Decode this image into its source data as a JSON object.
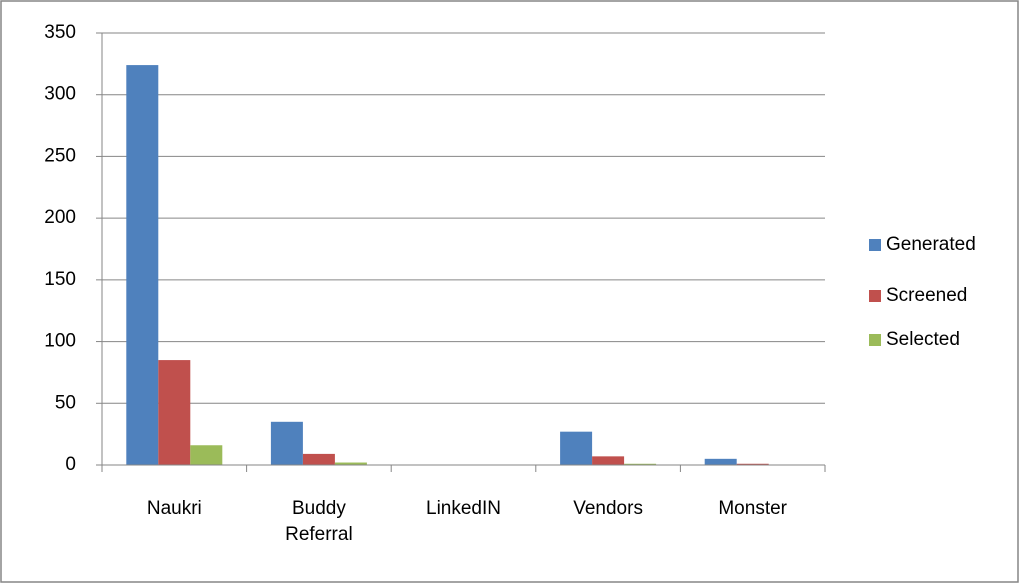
{
  "chart_data": {
    "type": "bar",
    "categories": [
      "Naukri",
      "Buddy Referral",
      "LinkedIN",
      "Vendors",
      "Monster"
    ],
    "series": [
      {
        "name": "Generated",
        "color": "#4f81bd",
        "values": [
          324,
          35,
          0,
          27,
          5
        ]
      },
      {
        "name": "Screened",
        "color": "#c0504d",
        "values": [
          85,
          9,
          0,
          7,
          1
        ]
      },
      {
        "name": "Selected",
        "color": "#9bbb59",
        "values": [
          16,
          2,
          0,
          1,
          0
        ]
      }
    ],
    "ylim": [
      0,
      350
    ],
    "yticks": [
      0,
      50,
      100,
      150,
      200,
      250,
      300,
      350
    ],
    "grid": true,
    "legend": "right"
  }
}
